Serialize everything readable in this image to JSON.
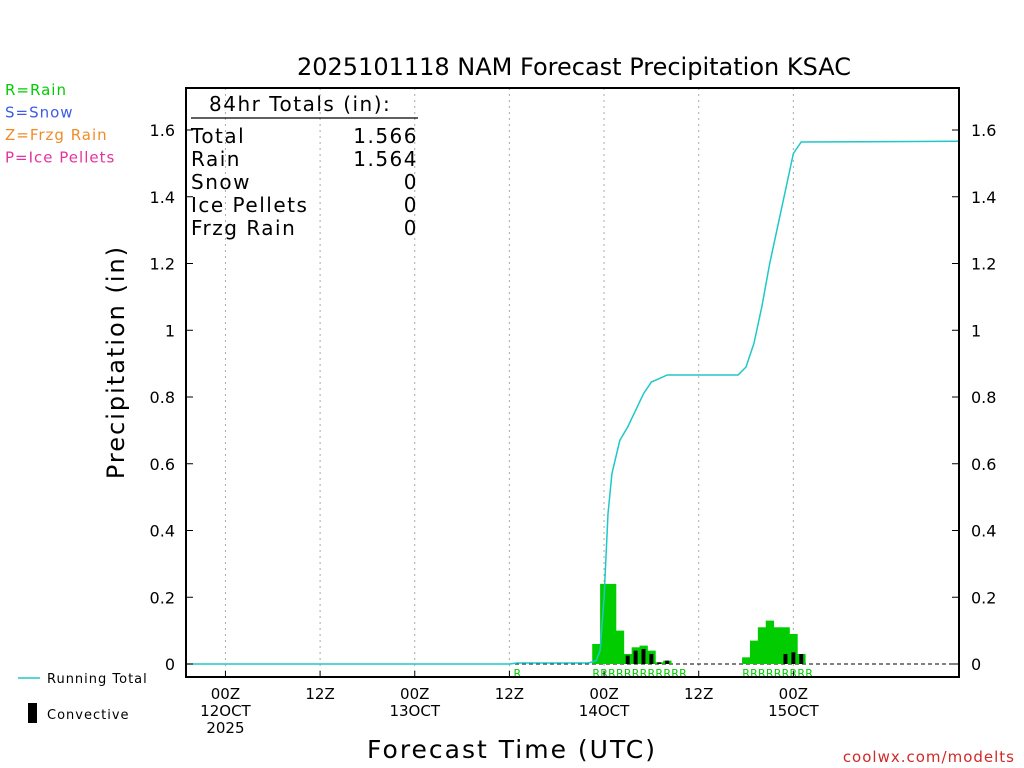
{
  "chart_data": {
    "type": "bar",
    "title": "2025101118 NAM Forecast Precipitation KSAC",
    "xlabel": "Forecast Time (UTC)",
    "ylabel": "Precipitation (in)",
    "ylim": [
      0,
      1.72
    ],
    "yticks": [
      "0",
      "0.2",
      "0.4",
      "0.6",
      "0.8",
      "1",
      "1.2",
      "1.4",
      "1.6"
    ],
    "x_unit": "hours since 00Z 12OCT 2025",
    "xlim": [
      -5,
      93
    ],
    "xticks": [
      {
        "hour": 0,
        "l1": "00Z",
        "l2": "12OCT",
        "l3": "2025"
      },
      {
        "hour": 12,
        "l1": "12Z",
        "l2": "",
        "l3": ""
      },
      {
        "hour": 24,
        "l1": "00Z",
        "l2": "13OCT",
        "l3": ""
      },
      {
        "hour": 36,
        "l1": "12Z",
        "l2": "",
        "l3": ""
      },
      {
        "hour": 48,
        "l1": "00Z",
        "l2": "14OCT",
        "l3": ""
      },
      {
        "hour": 60,
        "l1": "12Z",
        "l2": "",
        "l3": ""
      },
      {
        "hour": 72,
        "l1": "00Z",
        "l2": "15OCT",
        "l3": ""
      }
    ],
    "legend_types": [
      {
        "code": "R=Rain",
        "color": "#00cc00"
      },
      {
        "code": "S=Snow",
        "color": "#3c5ce6"
      },
      {
        "code": "Z=Frzg Rain",
        "color": "#f08c28"
      },
      {
        "code": "P=Ice Pellets",
        "color": "#e6329b"
      }
    ],
    "legend_bottom": {
      "running_total": "Running Total",
      "convective": "Convective"
    },
    "totals": {
      "header": "84hr Totals (in):",
      "rows": [
        {
          "label": "Total",
          "value": "1.566"
        },
        {
          "label": "Rain",
          "value": "1.564"
        },
        {
          "label": "Snow",
          "value": "0"
        },
        {
          "label": "Ice Pellets",
          "value": "0"
        },
        {
          "label": "Frzg Rain",
          "value": "0"
        }
      ]
    },
    "series": [
      {
        "name": "Rain",
        "color": "#00cc00",
        "bars": [
          {
            "hour": 47,
            "value": 0.06
          },
          {
            "hour": 48,
            "value": 0.24
          },
          {
            "hour": 49,
            "value": 0.24
          },
          {
            "hour": 50,
            "value": 0.1
          },
          {
            "hour": 51,
            "value": 0.03
          },
          {
            "hour": 52,
            "value": 0.05
          },
          {
            "hour": 53,
            "value": 0.055
          },
          {
            "hour": 54,
            "value": 0.04
          },
          {
            "hour": 55,
            "value": 0.005
          },
          {
            "hour": 56,
            "value": 0.01
          },
          {
            "hour": 66,
            "value": 0.02
          },
          {
            "hour": 67,
            "value": 0.07
          },
          {
            "hour": 68,
            "value": 0.11
          },
          {
            "hour": 69,
            "value": 0.13
          },
          {
            "hour": 70,
            "value": 0.11
          },
          {
            "hour": 71,
            "value": 0.11
          },
          {
            "hour": 72,
            "value": 0.09
          },
          {
            "hour": 73,
            "value": 0.03
          }
        ]
      },
      {
        "name": "Convective",
        "color": "#000000",
        "bars": [
          {
            "hour": 51,
            "value": 0.025
          },
          {
            "hour": 52,
            "value": 0.04
          },
          {
            "hour": 53,
            "value": 0.045
          },
          {
            "hour": 54,
            "value": 0.03
          },
          {
            "hour": 55,
            "value": 0.005
          },
          {
            "hour": 56,
            "value": 0.01
          },
          {
            "hour": 71,
            "value": 0.03
          },
          {
            "hour": 72,
            "value": 0.035
          },
          {
            "hour": 73,
            "value": 0.03
          }
        ]
      },
      {
        "name": "Running Total",
        "color": "#1ec8c8",
        "type": "line",
        "points": [
          [
            -5,
            0
          ],
          [
            36,
            0
          ],
          [
            37,
            0.003
          ],
          [
            46,
            0.003
          ],
          [
            47,
            0.01
          ],
          [
            47.5,
            0.04
          ],
          [
            48,
            0.2
          ],
          [
            48.5,
            0.45
          ],
          [
            49,
            0.57
          ],
          [
            50,
            0.67
          ],
          [
            51,
            0.71
          ],
          [
            52,
            0.76
          ],
          [
            53,
            0.81
          ],
          [
            54,
            0.845
          ],
          [
            55,
            0.855
          ],
          [
            56,
            0.866
          ],
          [
            65,
            0.866
          ],
          [
            66,
            0.89
          ],
          [
            67,
            0.96
          ],
          [
            68,
            1.07
          ],
          [
            69,
            1.2
          ],
          [
            70,
            1.31
          ],
          [
            71,
            1.42
          ],
          [
            72,
            1.53
          ],
          [
            73,
            1.564
          ],
          [
            93,
            1.566
          ]
        ]
      }
    ],
    "ptype_markers": [
      {
        "hour": 37,
        "label": "R"
      },
      {
        "hour": 47,
        "label": "R"
      },
      {
        "hour": 48,
        "label": "R"
      },
      {
        "hour": 49,
        "label": "R"
      },
      {
        "hour": 50,
        "label": "R"
      },
      {
        "hour": 51,
        "label": "R"
      },
      {
        "hour": 52,
        "label": "R"
      },
      {
        "hour": 53,
        "label": "R"
      },
      {
        "hour": 54,
        "label": "R"
      },
      {
        "hour": 55,
        "label": "R"
      },
      {
        "hour": 56,
        "label": "R"
      },
      {
        "hour": 57,
        "label": "R"
      },
      {
        "hour": 58,
        "label": "R"
      },
      {
        "hour": 66,
        "label": "R"
      },
      {
        "hour": 67,
        "label": "R"
      },
      {
        "hour": 68,
        "label": "R"
      },
      {
        "hour": 69,
        "label": "R"
      },
      {
        "hour": 70,
        "label": "R"
      },
      {
        "hour": 71,
        "label": "R"
      },
      {
        "hour": 72,
        "label": "R"
      },
      {
        "hour": 73,
        "label": "R"
      },
      {
        "hour": 74,
        "label": "R"
      }
    ],
    "credit": "coolwx.com/modelts"
  }
}
